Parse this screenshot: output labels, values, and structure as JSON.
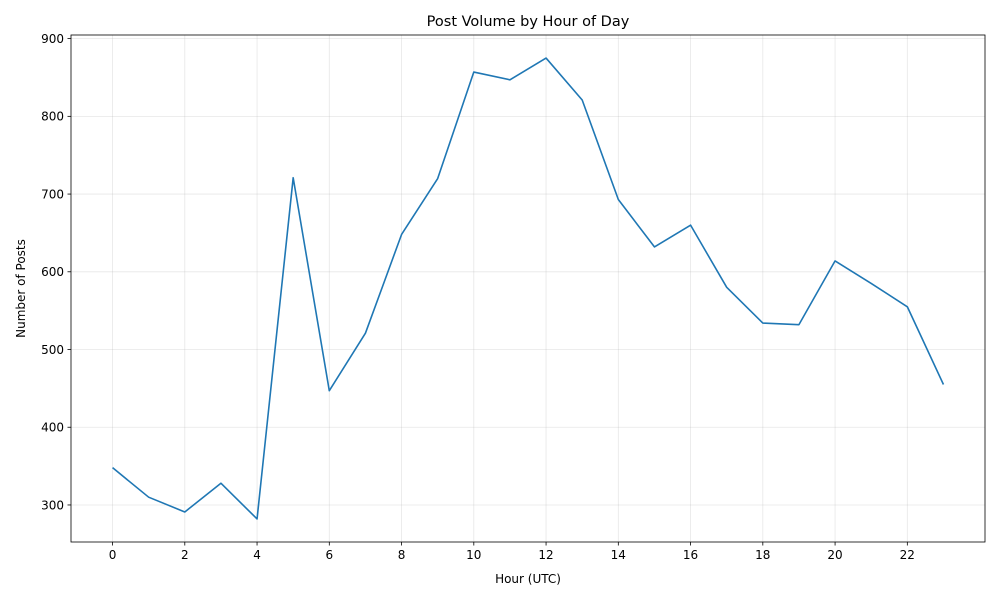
{
  "chart_data": {
    "type": "line",
    "title": "Post Volume by Hour of Day",
    "xlabel": "Hour (UTC)",
    "ylabel": "Number of Posts",
    "x": [
      0,
      1,
      2,
      3,
      4,
      5,
      6,
      7,
      8,
      9,
      10,
      11,
      12,
      13,
      14,
      15,
      16,
      17,
      18,
      19,
      20,
      21,
      22,
      23
    ],
    "series": [
      {
        "values": [
          348,
          310,
          291,
          328,
          282,
          721,
          447,
          521,
          648,
          720,
          857,
          847,
          875,
          821,
          693,
          632,
          660,
          580,
          534,
          532,
          614,
          585,
          555,
          455
        ]
      }
    ],
    "xlim": [
      -1.15,
      24.15
    ],
    "ylim": [
      252.35,
      904.65
    ],
    "xticks": [
      0,
      2,
      4,
      6,
      8,
      10,
      12,
      14,
      16,
      18,
      20,
      22
    ],
    "yticks": [
      300,
      400,
      500,
      600,
      700,
      800,
      900
    ],
    "grid": true,
    "line_color": "#1f77b4"
  }
}
